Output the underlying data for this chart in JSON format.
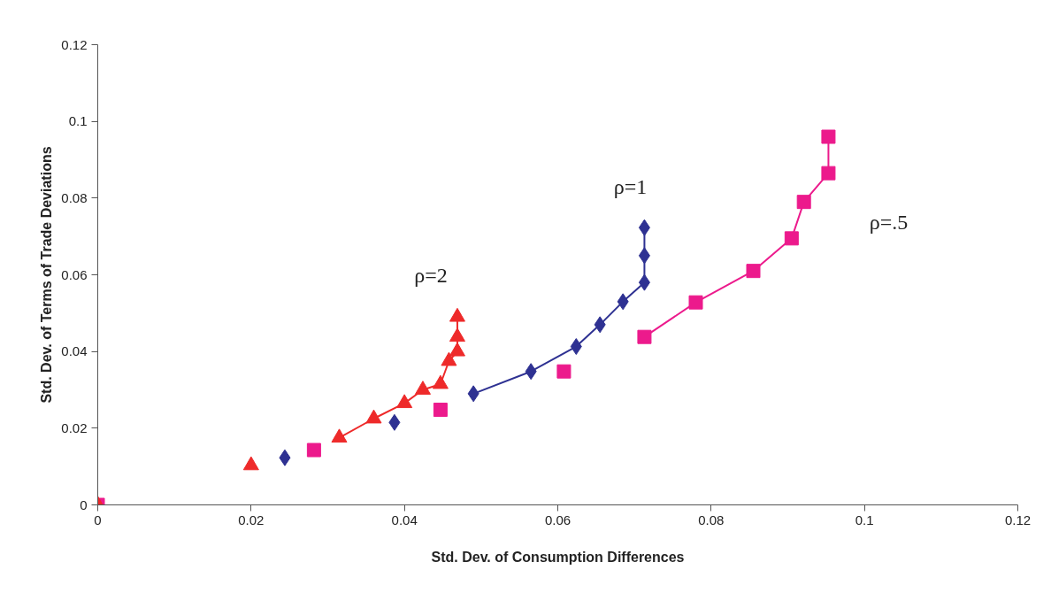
{
  "chart_data": {
    "type": "line",
    "xlabel": "Std. Dev. of Consumption Differences",
    "ylabel": "Std. Dev. of Terms of Trade Deviations",
    "xlim": [
      0,
      0.12
    ],
    "ylim": [
      0,
      0.12
    ],
    "xticks": [
      0,
      0.02,
      0.04,
      0.06,
      0.08,
      0.1,
      0.12
    ],
    "yticks": [
      0,
      0.02,
      0.04,
      0.06,
      0.08,
      0.1,
      0.12
    ],
    "grid": false,
    "legend": false,
    "line_style": "solid",
    "series": [
      {
        "type": "scatter",
        "marker": "square",
        "color": "#ec1a8c",
        "x": [
          0,
          0.0282,
          0.0447,
          0.0608
        ],
        "values": [
          0,
          0.0143,
          0.0248,
          0.0348
        ]
      },
      {
        "name": "ρ=.5",
        "marker": "square",
        "color": "#ec1a8c",
        "x": [
          0.0713,
          0.078,
          0.0855,
          0.0905,
          0.0921,
          0.0953,
          0.0953
        ],
        "values": [
          0.0438,
          0.0528,
          0.061,
          0.0695,
          0.079,
          0.0865,
          0.096
        ]
      },
      {
        "type": "scatter",
        "marker": "diamond",
        "color": "#2e3192",
        "x": [
          0.0244,
          0.0387
        ],
        "values": [
          0.0123,
          0.0215
        ]
      },
      {
        "name": "ρ=1",
        "marker": "diamond",
        "color": "#2e3192",
        "x": [
          0.049,
          0.0565,
          0.0624,
          0.0655,
          0.0685,
          0.0713,
          0.0713,
          0.0713
        ],
        "values": [
          0.029,
          0.0348,
          0.0413,
          0.047,
          0.053,
          0.058,
          0.065,
          0.0723
        ]
      },
      {
        "type": "scatter",
        "marker": "triangle",
        "color": "#ee2a2a",
        "x": [
          0,
          0.02
        ],
        "values": [
          0,
          0.0103
        ]
      },
      {
        "name": "ρ=2",
        "marker": "triangle",
        "color": "#ee2a2a",
        "x": [
          0.0315,
          0.036,
          0.04,
          0.0424,
          0.0447,
          0.0458,
          0.0469,
          0.0469,
          0.0469
        ],
        "values": [
          0.0175,
          0.0225,
          0.0265,
          0.03,
          0.0315,
          0.0375,
          0.04,
          0.0438,
          0.049
        ]
      }
    ]
  }
}
